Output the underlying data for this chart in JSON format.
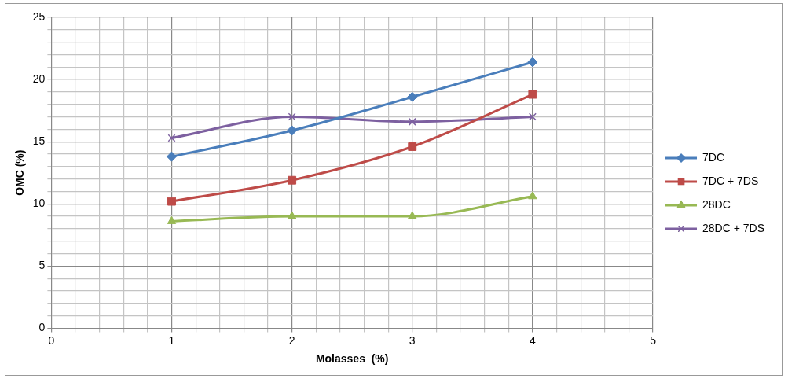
{
  "chart_data": {
    "type": "line",
    "xlabel": "Molasses  (%)",
    "ylabel": "OMC (%)",
    "x": [
      1,
      2,
      3,
      4
    ],
    "series": [
      {
        "name": "7DC",
        "color": "#4a7ebb",
        "marker": "diamond",
        "values": [
          13.8,
          15.9,
          18.6,
          21.4
        ]
      },
      {
        "name": "7DC + 7DS",
        "color": "#be4b48",
        "marker": "square",
        "values": [
          10.2,
          11.9,
          14.6,
          18.8
        ]
      },
      {
        "name": "28DC",
        "color": "#98b954",
        "marker": "triangle",
        "values": [
          8.6,
          9.0,
          9.0,
          10.6
        ]
      },
      {
        "name": "28DC + 7DS",
        "color": "#7d60a0",
        "marker": "cross",
        "values": [
          15.3,
          17.0,
          16.6,
          17.0
        ]
      }
    ],
    "xlim": [
      0,
      5
    ],
    "xticks": [
      0,
      {
        "value": 0.2,
        "label": null
      },
      {
        "value": 0.4,
        "label": null
      },
      {
        "value": 0.6,
        "label": null
      },
      {
        "value": 0.8,
        "label": null
      },
      1,
      {
        "value": 1.2,
        "label": null
      },
      {
        "value": 1.4,
        "label": null
      },
      {
        "value": 1.6,
        "label": null
      },
      {
        "value": 1.8,
        "label": null
      },
      2,
      {
        "value": 2.2,
        "label": null
      },
      {
        "value": 2.4,
        "label": null
      },
      {
        "value": 2.6,
        "label": null
      },
      {
        "value": 2.8,
        "label": null
      },
      3,
      {
        "value": 3.2,
        "label": null
      },
      {
        "value": 3.4,
        "label": null
      },
      {
        "value": 3.6,
        "label": null
      },
      {
        "value": 3.8,
        "label": null
      },
      4,
      {
        "value": 4.2,
        "label": null
      },
      {
        "value": 4.4,
        "label": null
      },
      {
        "value": 4.6,
        "label": null
      },
      {
        "value": 4.8,
        "label": null
      },
      5
    ],
    "ylim": [
      0,
      25
    ],
    "yticks": [
      0,
      {
        "value": 1,
        "label": null
      },
      {
        "value": 2,
        "label": null
      },
      {
        "value": 3,
        "label": null
      },
      {
        "value": 4,
        "label": null
      },
      5,
      {
        "value": 6,
        "label": null
      },
      {
        "value": 7,
        "label": null
      },
      {
        "value": 8,
        "label": null
      },
      {
        "value": 9,
        "label": null
      },
      10,
      {
        "value": 11,
        "label": null
      },
      {
        "value": 12,
        "label": null
      },
      {
        "value": 13,
        "label": null
      },
      {
        "value": 14,
        "label": null
      },
      15,
      {
        "value": 16,
        "label": null
      },
      {
        "value": 17,
        "label": null
      },
      {
        "value": 18,
        "label": null
      },
      {
        "value": 19,
        "label": null
      },
      20,
      {
        "value": 21,
        "label": null
      },
      {
        "value": 22,
        "label": null
      },
      {
        "value": 23,
        "label": null
      },
      {
        "value": 24,
        "label": null
      },
      25
    ],
    "grid": true,
    "legend": "right",
    "line_style": "solid"
  }
}
